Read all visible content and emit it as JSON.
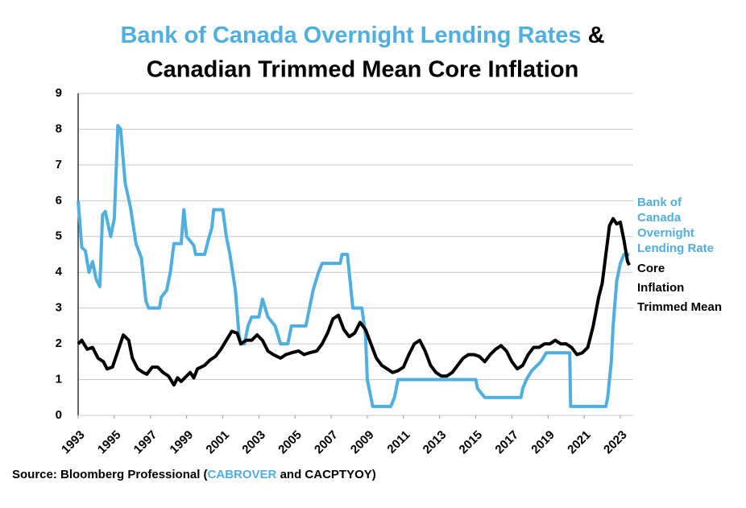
{
  "chart_data": {
    "type": "line",
    "title": [
      "Bank of Canada Overnight Lending Rates",
      "&",
      "Canadian Trimmed Mean Core Inflation"
    ],
    "source": [
      "Source: Bloomberg Professional (",
      "CABROVER",
      "and CACPTYOY)"
    ],
    "xlim": [
      1993,
      2023.7
    ],
    "xticks": [
      1993,
      1995,
      1997,
      1999,
      2001,
      2003,
      2005,
      2007,
      2009,
      2011,
      2013,
      2015,
      2017,
      2019,
      2021,
      2023
    ],
    "ylim": [
      0,
      9
    ],
    "yticks": [
      0,
      1,
      2,
      3,
      4,
      5,
      6,
      7,
      8,
      9
    ],
    "grid": true,
    "legend": "right",
    "series": [
      {
        "name": "Bank of Canada Overnight Lending Rate",
        "color": "#4fafe0",
        "x": [
          1993.0,
          1993.2,
          1993.4,
          1993.6,
          1993.8,
          1994.0,
          1994.2,
          1994.35,
          1994.5,
          1994.8,
          1995.0,
          1995.2,
          1995.35,
          1995.6,
          1995.9,
          1996.2,
          1996.5,
          1996.75,
          1996.9,
          1997.5,
          1997.6,
          1997.9,
          1998.1,
          1998.3,
          1998.7,
          1998.85,
          1999.0,
          1999.4,
          1999.5,
          2000.0,
          2000.2,
          2000.4,
          2000.5,
          2001.0,
          2001.2,
          2001.4,
          2001.7,
          2001.9,
          2002.0,
          2002.2,
          2002.4,
          2002.6,
          2003.0,
          2003.2,
          2003.5,
          2003.9,
          2004.2,
          2004.6,
          2004.8,
          2005.6,
          2005.8,
          2006.0,
          2006.3,
          2006.5,
          2007.5,
          2007.6,
          2007.9,
          2008.0,
          2008.2,
          2008.7,
          2008.9,
          2009.0,
          2009.3,
          2010.3,
          2010.5,
          2010.7,
          2015.0,
          2015.1,
          2015.5,
          2017.5,
          2017.6,
          2017.8,
          2018.1,
          2018.6,
          2018.9,
          2020.2,
          2020.25,
          2022.2,
          2022.3,
          2022.4,
          2022.5,
          2022.6,
          2022.8,
          2023.0,
          2023.2,
          2023.5
        ],
        "values": [
          6.0,
          4.7,
          4.6,
          4.0,
          4.3,
          3.8,
          3.6,
          5.6,
          5.7,
          5.0,
          5.5,
          8.1,
          8.0,
          6.5,
          5.8,
          4.8,
          4.4,
          3.2,
          3.0,
          3.0,
          3.3,
          3.5,
          4.0,
          4.8,
          4.8,
          5.75,
          5.0,
          4.75,
          4.5,
          4.5,
          4.9,
          5.25,
          5.75,
          5.75,
          5.0,
          4.5,
          3.5,
          2.25,
          2.0,
          2.0,
          2.5,
          2.75,
          2.75,
          3.25,
          2.75,
          2.5,
          2.0,
          2.0,
          2.5,
          2.5,
          3.0,
          3.5,
          4.0,
          4.25,
          4.25,
          4.5,
          4.5,
          4.0,
          3.0,
          3.0,
          2.25,
          1.0,
          0.25,
          0.25,
          0.5,
          1.0,
          1.0,
          0.75,
          0.5,
          0.5,
          0.75,
          1.0,
          1.25,
          1.5,
          1.75,
          1.75,
          0.25,
          0.25,
          0.5,
          1.0,
          1.5,
          2.5,
          3.75,
          4.25,
          4.5,
          4.5
        ]
      },
      {
        "name": "Core Inflation Trimmed Mean",
        "color": "#000000",
        "x": [
          1993.0,
          1993.2,
          1993.5,
          1993.8,
          1994.1,
          1994.4,
          1994.6,
          1994.9,
          1995.2,
          1995.5,
          1995.8,
          1996.0,
          1996.3,
          1996.6,
          1996.8,
          1997.1,
          1997.4,
          1997.7,
          1998.0,
          1998.3,
          1998.5,
          1998.7,
          1999.0,
          1999.2,
          1999.4,
          1999.6,
          2000.0,
          2000.3,
          2000.6,
          2000.9,
          2001.2,
          2001.5,
          2001.8,
          2002.0,
          2002.3,
          2002.6,
          2002.9,
          2003.2,
          2003.5,
          2003.8,
          2004.2,
          2004.5,
          2004.8,
          2005.2,
          2005.5,
          2005.8,
          2006.2,
          2006.5,
          2006.8,
          2007.1,
          2007.4,
          2007.7,
          2008.0,
          2008.3,
          2008.6,
          2008.9,
          2009.2,
          2009.5,
          2009.8,
          2010.1,
          2010.4,
          2010.7,
          2011.0,
          2011.3,
          2011.6,
          2011.9,
          2012.2,
          2012.5,
          2012.8,
          2013.1,
          2013.4,
          2013.7,
          2014.0,
          2014.3,
          2014.6,
          2014.9,
          2015.2,
          2015.5,
          2015.8,
          2016.1,
          2016.4,
          2016.7,
          2017.0,
          2017.3,
          2017.6,
          2017.9,
          2018.2,
          2018.5,
          2018.8,
          2019.1,
          2019.4,
          2019.7,
          2020.0,
          2020.3,
          2020.6,
          2020.9,
          2021.2,
          2021.5,
          2021.8,
          2022.0,
          2022.2,
          2022.4,
          2022.6,
          2022.8,
          2023.0,
          2023.2,
          2023.4,
          2023.5
        ],
        "values": [
          2.0,
          2.1,
          1.85,
          1.9,
          1.6,
          1.5,
          1.3,
          1.35,
          1.8,
          2.25,
          2.1,
          1.6,
          1.3,
          1.2,
          1.15,
          1.35,
          1.35,
          1.2,
          1.1,
          0.85,
          1.05,
          0.95,
          1.1,
          1.2,
          1.05,
          1.3,
          1.4,
          1.55,
          1.65,
          1.85,
          2.1,
          2.35,
          2.3,
          2.0,
          2.1,
          2.1,
          2.25,
          2.1,
          1.8,
          1.7,
          1.6,
          1.7,
          1.75,
          1.8,
          1.7,
          1.75,
          1.8,
          2.0,
          2.3,
          2.7,
          2.8,
          2.4,
          2.2,
          2.3,
          2.6,
          2.4,
          2.0,
          1.6,
          1.4,
          1.3,
          1.2,
          1.25,
          1.35,
          1.7,
          2.0,
          2.1,
          1.8,
          1.4,
          1.2,
          1.1,
          1.1,
          1.2,
          1.4,
          1.6,
          1.7,
          1.7,
          1.65,
          1.5,
          1.7,
          1.85,
          1.95,
          1.8,
          1.5,
          1.3,
          1.4,
          1.7,
          1.9,
          1.9,
          2.0,
          2.0,
          2.1,
          2.0,
          2.0,
          1.9,
          1.7,
          1.75,
          1.9,
          2.5,
          3.3,
          3.7,
          4.5,
          5.3,
          5.5,
          5.35,
          5.4,
          4.9,
          4.3,
          4.2
        ]
      }
    ]
  }
}
